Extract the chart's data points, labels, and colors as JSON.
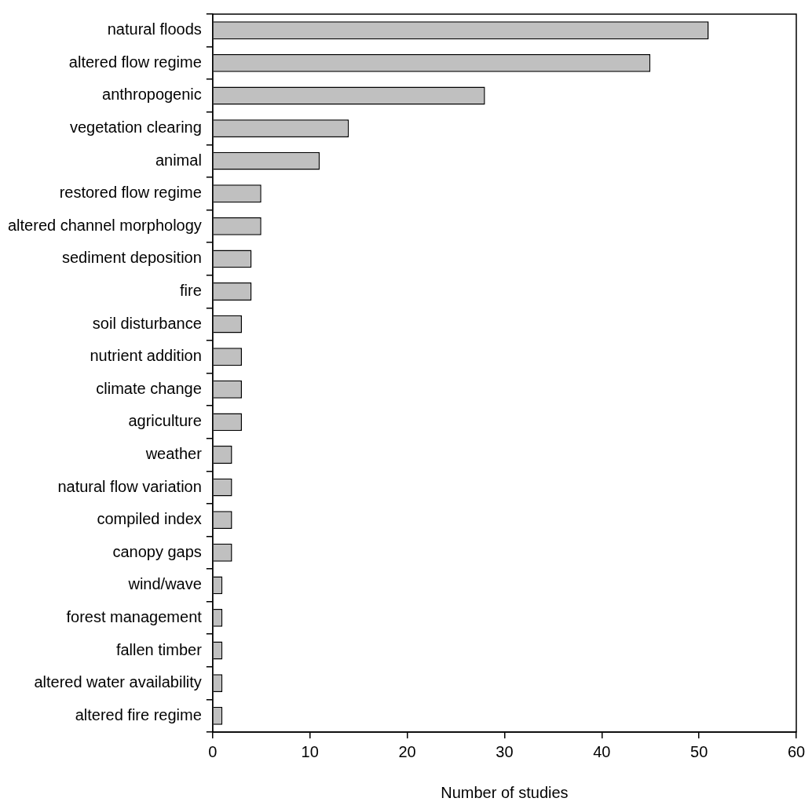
{
  "chart_data": {
    "type": "bar",
    "orientation": "horizontal",
    "xlabel": "Number of studies",
    "categories": [
      "natural floods",
      "altered flow regime",
      "anthropogenic",
      "vegetation clearing",
      "animal",
      "restored flow regime",
      "altered channel morphology",
      "sediment deposition",
      "fire",
      "soil disturbance",
      "nutrient addition",
      "climate change",
      "agriculture",
      "weather",
      "natural flow variation",
      "compiled index",
      "canopy gaps",
      "wind/wave",
      "forest management",
      "fallen timber",
      "altered water availability",
      "altered fire regime"
    ],
    "values": [
      51,
      45,
      28,
      14,
      11,
      5,
      5,
      4,
      4,
      3,
      3,
      3,
      3,
      2,
      2,
      2,
      2,
      1,
      1,
      1,
      1,
      1
    ],
    "color": "#c0c0c0",
    "xlim": [
      0,
      60
    ],
    "xticks": [
      0,
      10,
      20,
      30,
      40,
      50,
      60
    ]
  }
}
